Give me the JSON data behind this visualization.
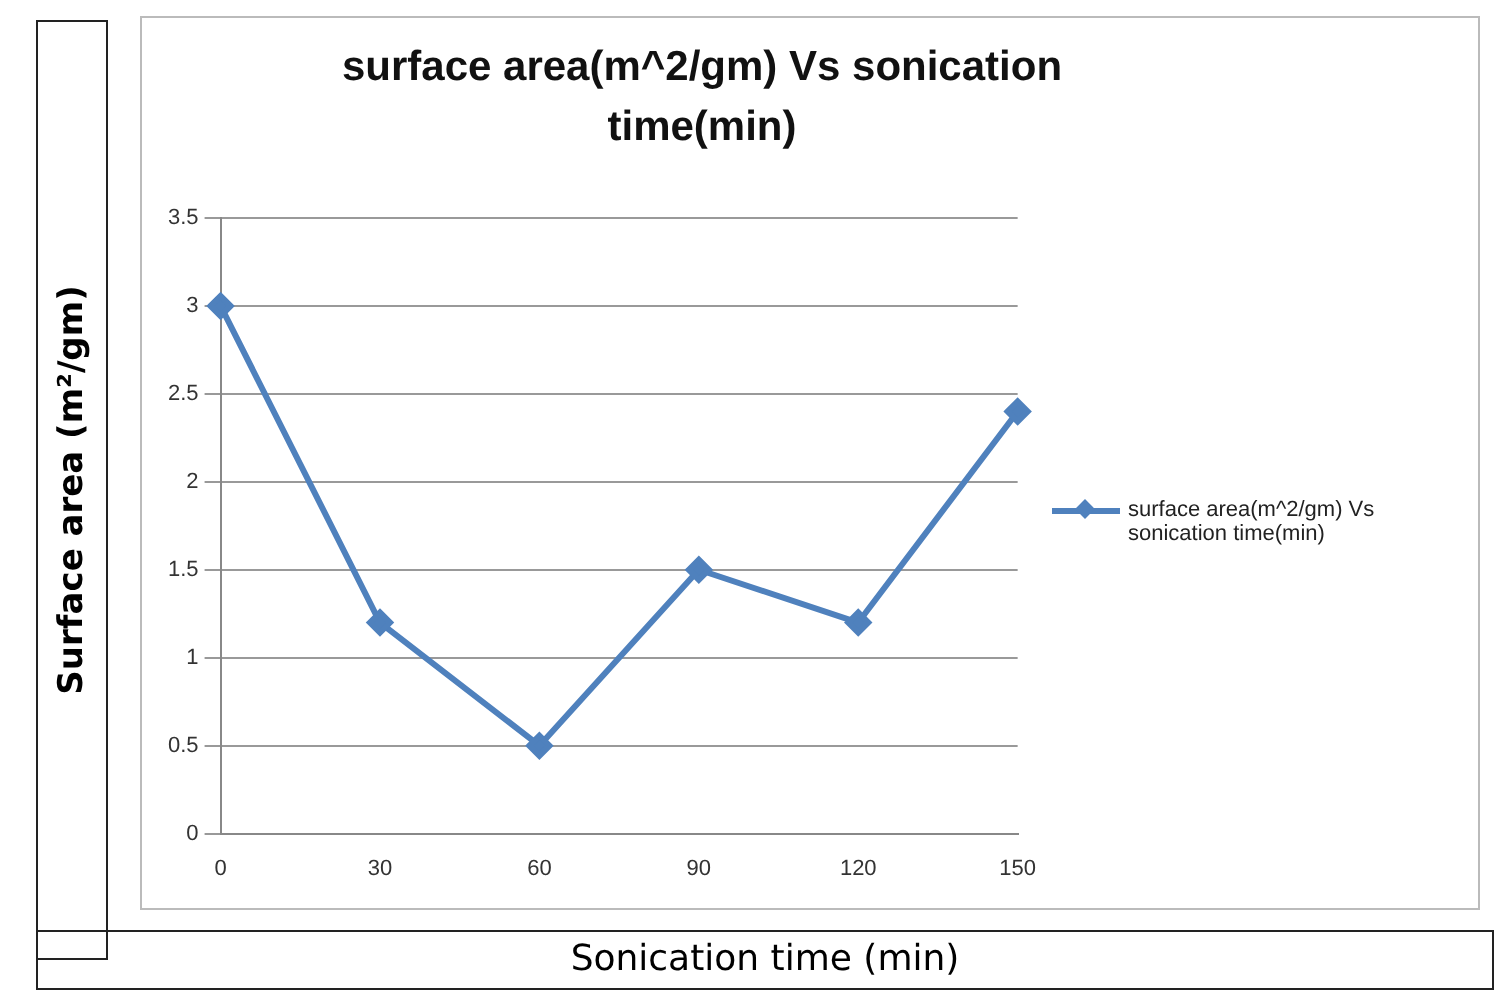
{
  "chart_data": {
    "type": "line",
    "title": "surface area(m^2/gm) Vs sonication time(min)",
    "xlabel": "Sonication  time (min)",
    "ylabel": "Surface  area (m²/gm)",
    "categories": [
      "0",
      "30",
      "60",
      "90",
      "120",
      "150"
    ],
    "series": [
      {
        "name": "surface area(m^2/gm) Vs sonication time(min)",
        "color": "#4f81bd",
        "values": [
          3,
          1.2,
          0.5,
          1.5,
          1.2,
          2.4
        ]
      }
    ],
    "ylim": [
      0,
      3.5
    ],
    "yticks": [
      0,
      0.5,
      1,
      1.5,
      2,
      2.5,
      3,
      3.5
    ],
    "grid": "y",
    "legend": "right",
    "marker": "diamond",
    "line_style": "solid"
  }
}
